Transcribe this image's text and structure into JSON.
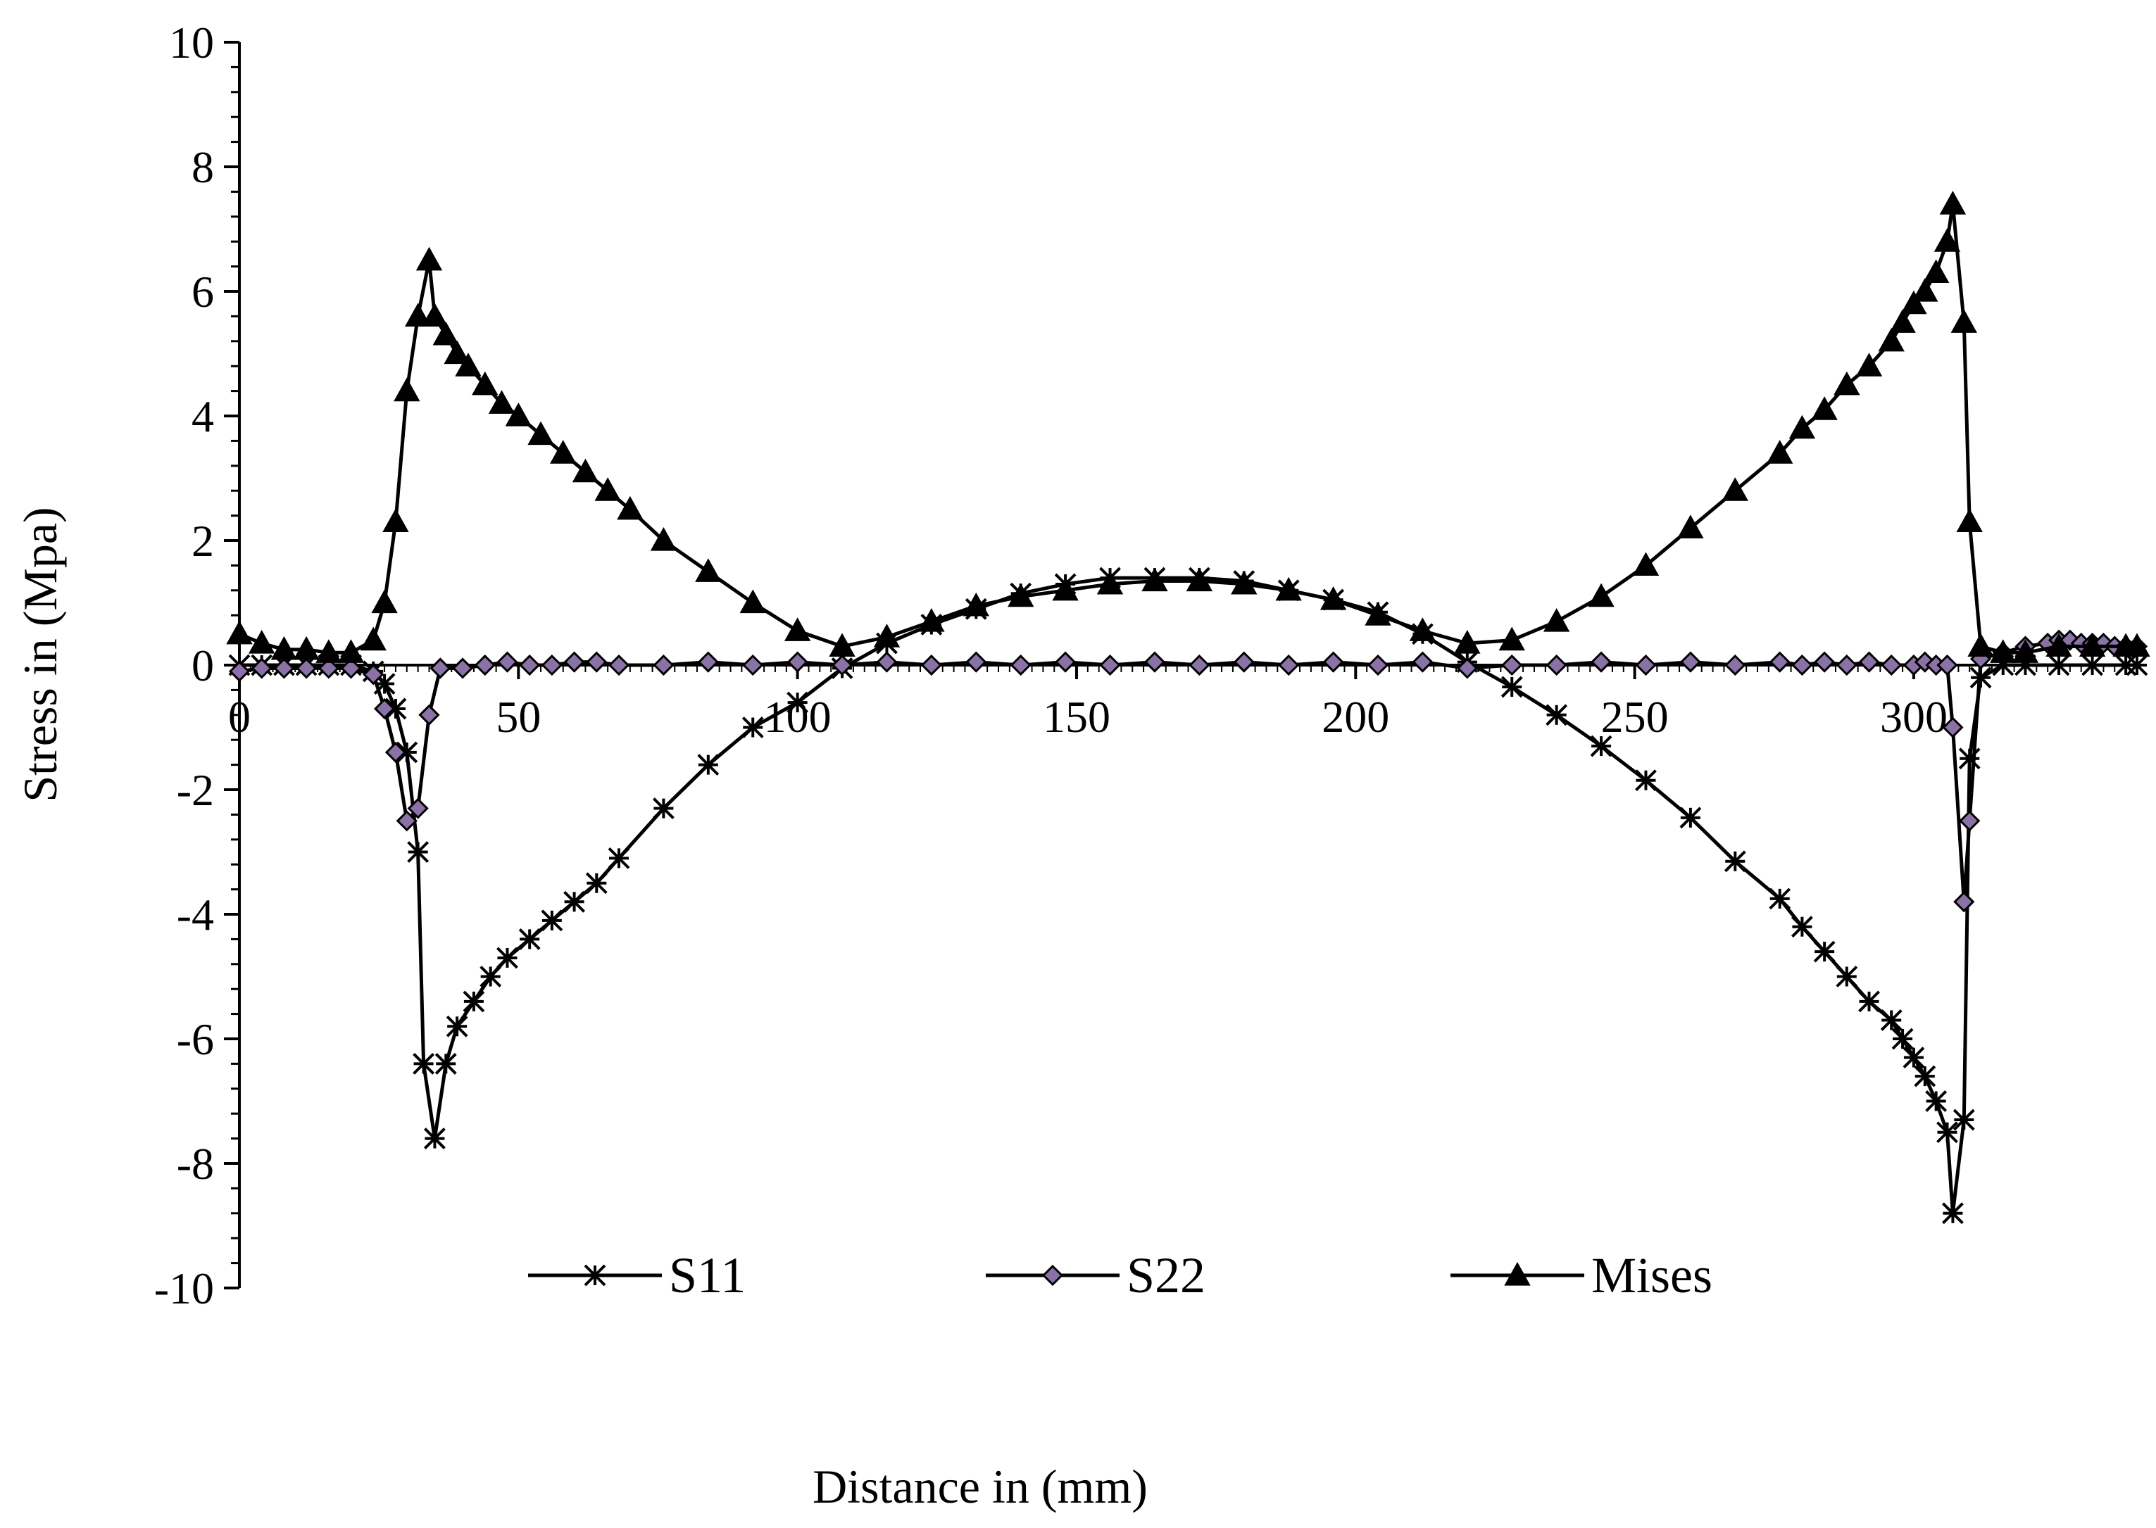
{
  "chart_data": {
    "type": "line",
    "title": "",
    "xlabel": "Distance in (mm)",
    "ylabel": "Stress in (Mpa)",
    "xlim": [
      0,
      340
    ],
    "ylim": [
      -10,
      10
    ],
    "x_ticks": [
      0,
      50,
      100,
      150,
      200,
      250,
      300
    ],
    "x_tick_labels": [
      "0",
      "50",
      "100",
      "150",
      "200",
      "250",
      "300"
    ],
    "y_ticks": [
      10,
      8,
      6,
      4,
      2,
      0,
      -2,
      -4,
      -6,
      -8,
      -10
    ],
    "y_tick_labels": [
      "10",
      "8",
      "6",
      "4",
      "2",
      "0",
      "-2",
      "-4",
      "-6",
      "-8",
      "-10"
    ],
    "legend_position": "bottom-center",
    "grid": false,
    "series": [
      {
        "name": "S11",
        "marker": "asterisk",
        "color": "#000000",
        "points": [
          [
            0,
            0
          ],
          [
            4,
            0
          ],
          [
            8,
            0
          ],
          [
            12,
            0
          ],
          [
            16,
            0
          ],
          [
            20,
            0
          ],
          [
            24,
            -0.1
          ],
          [
            26,
            -0.3
          ],
          [
            28,
            -0.7
          ],
          [
            30,
            -1.4
          ],
          [
            32,
            -3.0
          ],
          [
            33,
            -6.4
          ],
          [
            35,
            -7.6
          ],
          [
            37,
            -6.4
          ],
          [
            39,
            -5.8
          ],
          [
            42,
            -5.4
          ],
          [
            45,
            -5.0
          ],
          [
            48,
            -4.7
          ],
          [
            52,
            -4.4
          ],
          [
            56,
            -4.1
          ],
          [
            60,
            -3.8
          ],
          [
            64,
            -3.5
          ],
          [
            68,
            -3.1
          ],
          [
            76,
            -2.3
          ],
          [
            84,
            -1.6
          ],
          [
            92,
            -1.0
          ],
          [
            100,
            -0.6
          ],
          [
            108,
            -0.05
          ],
          [
            116,
            0.35
          ],
          [
            124,
            0.65
          ],
          [
            132,
            0.9
          ],
          [
            140,
            1.15
          ],
          [
            148,
            1.3
          ],
          [
            156,
            1.4
          ],
          [
            164,
            1.4
          ],
          [
            172,
            1.4
          ],
          [
            180,
            1.35
          ],
          [
            188,
            1.2
          ],
          [
            196,
            1.05
          ],
          [
            204,
            0.85
          ],
          [
            212,
            0.5
          ],
          [
            220,
            0.05
          ],
          [
            228,
            -0.35
          ],
          [
            236,
            -0.8
          ],
          [
            244,
            -1.3
          ],
          [
            252,
            -1.85
          ],
          [
            260,
            -2.45
          ],
          [
            268,
            -3.15
          ],
          [
            276,
            -3.75
          ],
          [
            280,
            -4.2
          ],
          [
            284,
            -4.6
          ],
          [
            288,
            -5.0
          ],
          [
            292,
            -5.4
          ],
          [
            296,
            -5.7
          ],
          [
            298,
            -6.0
          ],
          [
            300,
            -6.3
          ],
          [
            302,
            -6.6
          ],
          [
            304,
            -7.0
          ],
          [
            306,
            -7.5
          ],
          [
            307,
            -8.8
          ],
          [
            309,
            -7.3
          ],
          [
            310,
            -1.5
          ],
          [
            312,
            -0.2
          ],
          [
            316,
            0
          ],
          [
            320,
            0
          ],
          [
            326,
            0
          ],
          [
            332,
            0
          ],
          [
            338,
            0
          ],
          [
            340,
            0
          ]
        ]
      },
      {
        "name": "S22",
        "marker": "diamond",
        "color": "#000000",
        "marker_fill": "#8a72a6",
        "points": [
          [
            0,
            -0.1
          ],
          [
            4,
            -0.05
          ],
          [
            8,
            -0.05
          ],
          [
            12,
            -0.05
          ],
          [
            16,
            -0.05
          ],
          [
            20,
            -0.05
          ],
          [
            24,
            -0.15
          ],
          [
            26,
            -0.7
          ],
          [
            28,
            -1.4
          ],
          [
            30,
            -2.5
          ],
          [
            32,
            -2.3
          ],
          [
            34,
            -0.8
          ],
          [
            36,
            -0.05
          ],
          [
            40,
            -0.05
          ],
          [
            44,
            0
          ],
          [
            48,
            0.05
          ],
          [
            52,
            0
          ],
          [
            56,
            0
          ],
          [
            60,
            0.05
          ],
          [
            64,
            0.05
          ],
          [
            68,
            0
          ],
          [
            76,
            0
          ],
          [
            84,
            0.05
          ],
          [
            92,
            0
          ],
          [
            100,
            0.05
          ],
          [
            108,
            0
          ],
          [
            116,
            0.05
          ],
          [
            124,
            0
          ],
          [
            132,
            0.05
          ],
          [
            140,
            0
          ],
          [
            148,
            0.05
          ],
          [
            156,
            0
          ],
          [
            164,
            0.05
          ],
          [
            172,
            0
          ],
          [
            180,
            0.05
          ],
          [
            188,
            0
          ],
          [
            196,
            0.05
          ],
          [
            204,
            0
          ],
          [
            212,
            0.05
          ],
          [
            220,
            -0.05
          ],
          [
            228,
            0
          ],
          [
            236,
            0
          ],
          [
            244,
            0.05
          ],
          [
            252,
            0
          ],
          [
            260,
            0.05
          ],
          [
            268,
            0
          ],
          [
            276,
            0.05
          ],
          [
            280,
            0
          ],
          [
            284,
            0.05
          ],
          [
            288,
            0
          ],
          [
            292,
            0.05
          ],
          [
            296,
            0
          ],
          [
            300,
            0
          ],
          [
            302,
            0.05
          ],
          [
            304,
            0
          ],
          [
            306,
            0
          ],
          [
            307,
            -1.0
          ],
          [
            309,
            -3.8
          ],
          [
            310,
            -2.5
          ],
          [
            312,
            0.1
          ],
          [
            316,
            0.2
          ],
          [
            320,
            0.3
          ],
          [
            324,
            0.35
          ],
          [
            326,
            0.4
          ],
          [
            328,
            0.4
          ],
          [
            330,
            0.35
          ],
          [
            332,
            0.35
          ],
          [
            334,
            0.35
          ],
          [
            336,
            0.3
          ],
          [
            338,
            0.3
          ],
          [
            340,
            0.3
          ]
        ]
      },
      {
        "name": "Mises",
        "marker": "triangle",
        "color": "#000000",
        "points": [
          [
            0,
            0.5
          ],
          [
            4,
            0.35
          ],
          [
            8,
            0.25
          ],
          [
            12,
            0.25
          ],
          [
            16,
            0.2
          ],
          [
            20,
            0.2
          ],
          [
            24,
            0.4
          ],
          [
            26,
            1.0
          ],
          [
            28,
            2.3
          ],
          [
            30,
            4.4
          ],
          [
            32,
            5.6
          ],
          [
            34,
            6.5
          ],
          [
            35,
            5.6
          ],
          [
            37,
            5.3
          ],
          [
            39,
            5.0
          ],
          [
            41,
            4.8
          ],
          [
            44,
            4.5
          ],
          [
            47,
            4.2
          ],
          [
            50,
            4.0
          ],
          [
            54,
            3.7
          ],
          [
            58,
            3.4
          ],
          [
            62,
            3.1
          ],
          [
            66,
            2.8
          ],
          [
            70,
            2.5
          ],
          [
            76,
            2.0
          ],
          [
            84,
            1.5
          ],
          [
            92,
            1.0
          ],
          [
            100,
            0.55
          ],
          [
            108,
            0.3
          ],
          [
            116,
            0.45
          ],
          [
            124,
            0.7
          ],
          [
            132,
            0.95
          ],
          [
            140,
            1.1
          ],
          [
            148,
            1.2
          ],
          [
            156,
            1.3
          ],
          [
            164,
            1.35
          ],
          [
            172,
            1.35
          ],
          [
            180,
            1.3
          ],
          [
            188,
            1.2
          ],
          [
            196,
            1.05
          ],
          [
            204,
            0.8
          ],
          [
            212,
            0.55
          ],
          [
            220,
            0.35
          ],
          [
            228,
            0.4
          ],
          [
            236,
            0.7
          ],
          [
            244,
            1.1
          ],
          [
            252,
            1.6
          ],
          [
            260,
            2.2
          ],
          [
            268,
            2.8
          ],
          [
            276,
            3.4
          ],
          [
            280,
            3.8
          ],
          [
            284,
            4.1
          ],
          [
            288,
            4.5
          ],
          [
            292,
            4.8
          ],
          [
            296,
            5.2
          ],
          [
            298,
            5.5
          ],
          [
            300,
            5.8
          ],
          [
            302,
            6.0
          ],
          [
            304,
            6.3
          ],
          [
            306,
            6.8
          ],
          [
            307,
            7.4
          ],
          [
            309,
            5.5
          ],
          [
            310,
            2.3
          ],
          [
            312,
            0.3
          ],
          [
            316,
            0.2
          ],
          [
            320,
            0.2
          ],
          [
            326,
            0.3
          ],
          [
            332,
            0.3
          ],
          [
            338,
            0.3
          ],
          [
            340,
            0.3
          ]
        ]
      }
    ]
  }
}
